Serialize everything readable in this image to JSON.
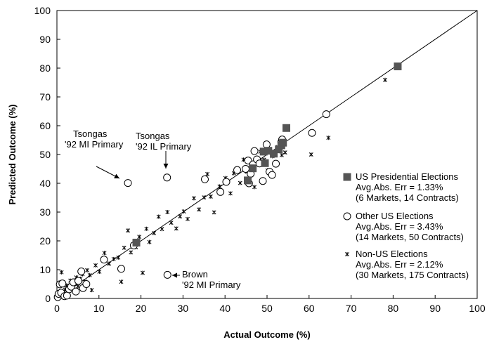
{
  "chart_data": {
    "type": "scatter",
    "xlabel": "Actual Outcome (%)",
    "ylabel": "Predicted Outcome (%)",
    "xlim": [
      0,
      100
    ],
    "ylim": [
      0,
      100
    ],
    "xticks": [
      "0",
      "10",
      "20",
      "30",
      "40",
      "50",
      "60",
      "70",
      "80",
      "90",
      "100"
    ],
    "yticks": [
      "0",
      "10",
      "20",
      "30",
      "40",
      "50",
      "60",
      "70",
      "80",
      "90",
      "100"
    ],
    "grid": false,
    "legend_position": "right",
    "reference_line": {
      "x": [
        0,
        100
      ],
      "y": [
        0,
        100
      ]
    },
    "series": [
      {
        "name": "US Presidential Elections",
        "detail1": "Avg.Abs. Err = 1.33%",
        "detail2": "(6 Markets, 14 Contracts)",
        "marker": "filled-square",
        "color": "#555555",
        "points": [
          [
            18.9,
            19.4
          ],
          [
            45.4,
            41.0
          ],
          [
            46.6,
            45.2
          ],
          [
            49.2,
            51.0
          ],
          [
            49.5,
            47.0
          ],
          [
            50.3,
            51.3
          ],
          [
            51.6,
            50.3
          ],
          [
            52.8,
            51.8
          ],
          [
            53.4,
            53.2
          ],
          [
            53.8,
            54.1
          ],
          [
            54.6,
            59.2
          ],
          [
            81.1,
            80.6
          ]
        ]
      },
      {
        "name": "Other US Elections",
        "detail1": "Avg.Abs. Err = 3.43%",
        "detail2": "(14 Markets, 50 Contracts)",
        "marker": "open-circle",
        "color": "#000000",
        "points": [
          [
            0.2,
            0.5
          ],
          [
            0.4,
            1.6
          ],
          [
            0.7,
            4.9
          ],
          [
            1.0,
            2.0
          ],
          [
            1.3,
            5.2
          ],
          [
            1.8,
            0.8
          ],
          [
            2.4,
            1.0
          ],
          [
            2.9,
            3.2
          ],
          [
            3.4,
            4.1
          ],
          [
            3.9,
            5.6
          ],
          [
            4.5,
            2.4
          ],
          [
            5.1,
            6.1
          ],
          [
            5.8,
            9.4
          ],
          [
            6.2,
            3.6
          ],
          [
            7.0,
            5.0
          ],
          [
            11.2,
            13.5
          ],
          [
            15.3,
            10.3
          ],
          [
            16.9,
            40.1
          ],
          [
            18.3,
            18.4
          ],
          [
            26.2,
            42.0
          ],
          [
            26.3,
            8.2
          ],
          [
            35.2,
            41.4
          ],
          [
            38.9,
            37.0
          ],
          [
            40.3,
            40.5
          ],
          [
            42.9,
            44.6
          ],
          [
            44.9,
            45.0
          ],
          [
            45.5,
            47.9
          ],
          [
            45.7,
            40.0
          ],
          [
            46.1,
            43.3
          ],
          [
            46.7,
            46.6
          ],
          [
            47.0,
            51.2
          ],
          [
            47.6,
            48.3
          ],
          [
            48.2,
            46.9
          ],
          [
            49.0,
            40.8
          ],
          [
            49.9,
            53.5
          ],
          [
            50.6,
            44.0
          ],
          [
            51.2,
            42.9
          ],
          [
            52.1,
            46.8
          ],
          [
            53.4,
            54.3
          ],
          [
            53.6,
            55.2
          ],
          [
            60.7,
            57.5
          ],
          [
            64.1,
            64.0
          ]
        ]
      },
      {
        "name": "Non-US Elections",
        "detail1": "Avg.Abs. Err = 2.12%",
        "detail2": "(30 Markets, 175 Contracts)",
        "marker": "star",
        "color": "#000000",
        "points": [
          [
            0.4,
            0.9
          ],
          [
            0.7,
            2.3
          ],
          [
            1.1,
            9.1
          ],
          [
            1.5,
            1.7
          ],
          [
            1.9,
            3.1
          ],
          [
            2.3,
            4.5
          ],
          [
            2.7,
            2.1
          ],
          [
            3.2,
            6.2
          ],
          [
            3.6,
            3.8
          ],
          [
            4.0,
            5.1
          ],
          [
            4.6,
            7.3
          ],
          [
            5.0,
            4.2
          ],
          [
            5.6,
            6.8
          ],
          [
            6.1,
            8.4
          ],
          [
            6.6,
            5.9
          ],
          [
            7.2,
            9.8
          ],
          [
            7.8,
            8.1
          ],
          [
            8.3,
            2.9
          ],
          [
            9.2,
            11.5
          ],
          [
            10.1,
            9.3
          ],
          [
            11.3,
            15.8
          ],
          [
            12.4,
            12.1
          ],
          [
            13.5,
            13.7
          ],
          [
            14.6,
            14.2
          ],
          [
            15.3,
            5.8
          ],
          [
            16.0,
            17.6
          ],
          [
            16.9,
            23.6
          ],
          [
            17.6,
            16.0
          ],
          [
            18.8,
            17.8
          ],
          [
            19.6,
            21.4
          ],
          [
            20.4,
            8.9
          ],
          [
            21.3,
            24.2
          ],
          [
            22.0,
            19.6
          ],
          [
            23.1,
            22.7
          ],
          [
            24.2,
            28.4
          ],
          [
            25.0,
            24.1
          ],
          [
            26.3,
            30.0
          ],
          [
            27.2,
            26.3
          ],
          [
            28.4,
            24.3
          ],
          [
            29.3,
            28.5
          ],
          [
            30.2,
            30.2
          ],
          [
            31.1,
            27.6
          ],
          [
            32.6,
            34.8
          ],
          [
            33.8,
            30.9
          ],
          [
            35.0,
            35.1
          ],
          [
            35.8,
            43.2
          ],
          [
            36.6,
            35.4
          ],
          [
            37.4,
            29.9
          ],
          [
            38.7,
            38.9
          ],
          [
            40.1,
            41.8
          ],
          [
            41.3,
            36.5
          ],
          [
            42.1,
            43.5
          ],
          [
            43.6,
            40.1
          ],
          [
            44.4,
            48.2
          ],
          [
            45.2,
            44.0
          ],
          [
            46.3,
            47.0
          ],
          [
            47.0,
            38.7
          ],
          [
            48.4,
            51.0
          ],
          [
            49.3,
            48.2
          ],
          [
            50.1,
            44.5
          ],
          [
            51.3,
            49.4
          ],
          [
            52.6,
            52.6
          ],
          [
            53.5,
            49.8
          ],
          [
            54.3,
            50.7
          ],
          [
            60.5,
            50.0
          ],
          [
            64.6,
            55.8
          ],
          [
            78.1,
            75.9
          ]
        ]
      }
    ],
    "annotations": [
      {
        "lines": [
          "Tsongas",
          "'92 MI Primary"
        ],
        "target": [
          16.9,
          40.1
        ]
      },
      {
        "lines": [
          "Tsongas",
          "'92 IL  Primary"
        ],
        "target": [
          26.2,
          42.0
        ]
      },
      {
        "lines": [
          "Brown",
          "'92 MI Primary"
        ],
        "target": [
          26.3,
          8.2
        ]
      }
    ]
  }
}
